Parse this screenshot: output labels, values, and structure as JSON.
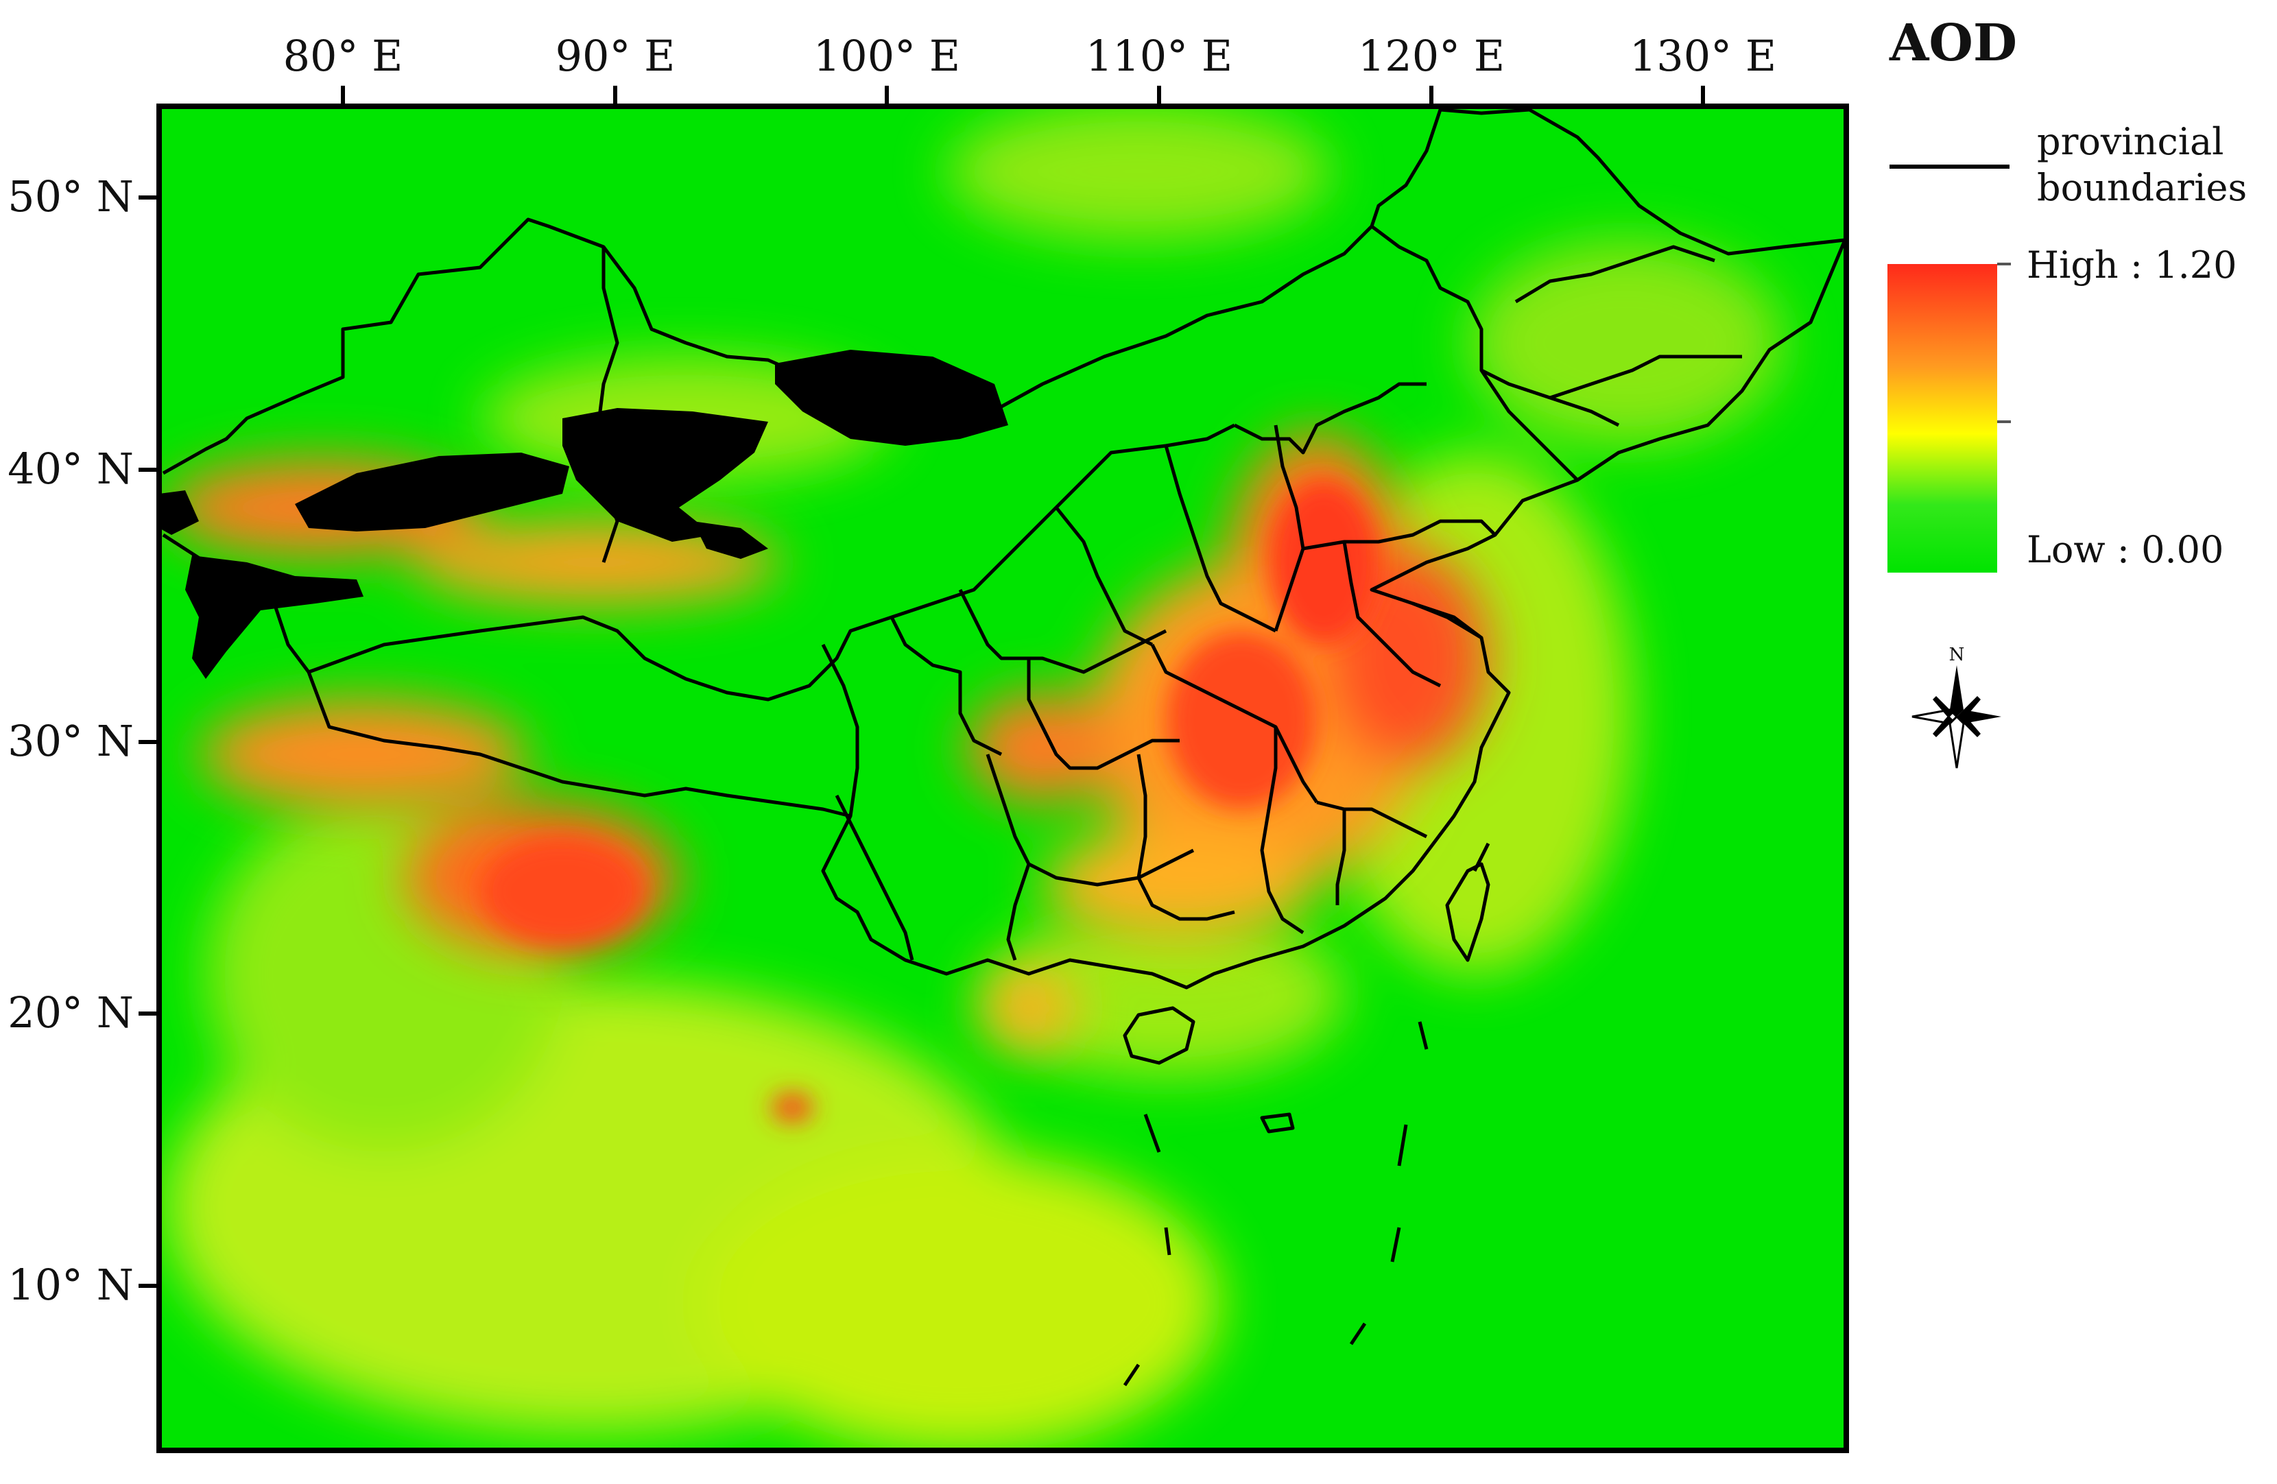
{
  "map": {
    "x_tick_labels": [
      "80° E",
      "90° E",
      "100° E",
      "110° E",
      "120° E",
      "130° E"
    ],
    "y_tick_labels": [
      "50° N",
      "40° N",
      "30° N",
      "20° N",
      "10° N"
    ],
    "legend": {
      "title": "AOD",
      "boundary_label_line1": "provincial",
      "boundary_label_line2": "boundaries",
      "high_label": "High : 1.20",
      "low_label": "Low : 0.00",
      "north_arrow_letter": "N"
    },
    "colors": {
      "low": "#00e400",
      "mid": "#ffff00",
      "high": "#ff2a1a",
      "no_data": "#000000",
      "boundary": "#000000"
    }
  }
}
